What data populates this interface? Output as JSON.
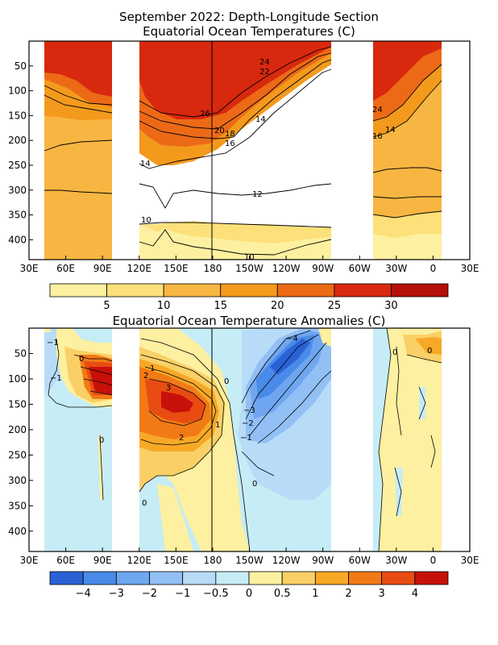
{
  "figure": {
    "title_line1": "September 2022: Depth-Longitude Section",
    "title_line2": "Equatorial Ocean Temperatures (C)",
    "title_anom": "Equatorial Ocean Temperature Anomalies (C)"
  },
  "chart_data": [
    {
      "type": "heatmap",
      "title": "September 2022: Depth-Longitude Section\nEquatorial Ocean Temperatures (C)",
      "x_tick_labels": [
        "30E",
        "60E",
        "90E",
        "120E",
        "150E",
        "180",
        "150W",
        "120W",
        "90W",
        "60W",
        "30W",
        "0",
        "30E"
      ],
      "x_ticks_deg_east": [
        30,
        60,
        90,
        120,
        150,
        180,
        210,
        240,
        270,
        300,
        330,
        360,
        390
      ],
      "y_tick_labels": [
        "50",
        "100",
        "150",
        "200",
        "250",
        "300",
        "350",
        "400"
      ],
      "y_ticks_depth_m": [
        50,
        100,
        150,
        200,
        250,
        300,
        350,
        400
      ],
      "y_range_depth_m": [
        0,
        440
      ],
      "colorbar_levels": [
        5,
        10,
        15,
        20,
        25,
        30
      ],
      "colorbar_colors": [
        "#fdf0a0",
        "#fde07a",
        "#f7b642",
        "#f39a1c",
        "#ec6a16",
        "#d8280e",
        "#b50f0a"
      ],
      "missing_longitudes_deg_east": [
        [
          97,
          117
        ],
        [
          280,
          305
        ]
      ],
      "data_longitude_range_deg_east": [
        42,
        368
      ],
      "layers_depth_m": [
        {
          "lon": [
            42,
            97,
            117,
            140,
            155,
            180,
            200,
            220,
            240,
            260,
            280
          ],
          "iso30": [
            0,
            0,
            0,
            0,
            0,
            0,
            0,
            0,
            0,
            0,
            0
          ],
          "iso25": [
            55,
            95,
            100,
            145,
            150,
            140,
            120,
            100,
            70,
            40,
            20
          ],
          "iso20": [
            70,
            120,
            140,
            170,
            170,
            165,
            150,
            135,
            110,
            80,
            50
          ],
          "iso15": [
            150,
            150,
            170,
            200,
            205,
            200,
            190,
            175,
            150,
            120,
            85
          ],
          "iso10": [
            440,
            440,
            350,
            360,
            360,
            350,
            360,
            370,
            380,
            380,
            380
          ]
        },
        {
          "lon": [
            305,
            320,
            340,
            368
          ],
          "iso25": [
            50,
            100,
            80,
            40
          ],
          "iso20": [
            120,
            150,
            120,
            60
          ],
          "iso15": [
            160,
            190,
            160,
            120
          ],
          "iso10": [
            400,
            390,
            380,
            370
          ]
        }
      ],
      "contour_labels": [
        "24",
        "22",
        "26",
        "20",
        "18",
        "16",
        "14",
        "14",
        "12",
        "10",
        "10",
        "24",
        "16",
        "14"
      ]
    },
    {
      "type": "heatmap",
      "title": "Equatorial Ocean Temperature Anomalies (C)",
      "x_tick_labels": [
        "30E",
        "60E",
        "90E",
        "120E",
        "150E",
        "180",
        "150W",
        "120W",
        "90W",
        "60W",
        "30W",
        "0",
        "30E"
      ],
      "x_ticks_deg_east": [
        30,
        60,
        90,
        120,
        150,
        180,
        210,
        240,
        270,
        300,
        330,
        360,
        390
      ],
      "y_tick_labels": [
        "50",
        "100",
        "150",
        "200",
        "250",
        "300",
        "350",
        "400"
      ],
      "y_ticks_depth_m": [
        50,
        100,
        150,
        200,
        250,
        300,
        350,
        400
      ],
      "y_range_depth_m": [
        0,
        440
      ],
      "colorbar_levels": [
        -4,
        -3,
        -2,
        -1,
        -0.5,
        0,
        0.5,
        1,
        2,
        3,
        4
      ],
      "colorbar_level_labels": [
        "−4",
        "−3",
        "−2",
        "−1",
        "−0.5",
        "0",
        "0.5",
        "1",
        "2",
        "3",
        "4"
      ],
      "colorbar_colors": [
        "#2a62d6",
        "#4a8ae8",
        "#6fa6ef",
        "#92c0f5",
        "#b8dcf8",
        "#c6ecf5",
        "#fdf0a0",
        "#fad066",
        "#f7a826",
        "#f27a16",
        "#e84c12",
        "#c8100a"
      ],
      "missing_longitudes_deg_east": [
        [
          97,
          117
        ],
        [
          280,
          305
        ]
      ],
      "features": [
        {
          "kind": "warm_max",
          "lon": [
            80,
            97
          ],
          "depth": [
            80,
            140
          ],
          "value": 4
        },
        {
          "kind": "warm_max",
          "lon": [
            120,
            185
          ],
          "depth": [
            100,
            190
          ],
          "value": 3
        },
        {
          "kind": "cold_core",
          "lon": [
            210,
            255
          ],
          "depth": [
            20,
            150
          ],
          "value": -4
        },
        {
          "kind": "cold_tongue",
          "lon": [
            200,
            230
          ],
          "depth": [
            140,
            220
          ],
          "value": -3
        }
      ],
      "contour_labels": [
        "−1",
        "0",
        "−1",
        "2",
        "1",
        "3",
        "2",
        "1",
        "0",
        "−4",
        "−3",
        "−2",
        "−1",
        "0",
        "0",
        "0",
        "0",
        "0"
      ]
    }
  ]
}
